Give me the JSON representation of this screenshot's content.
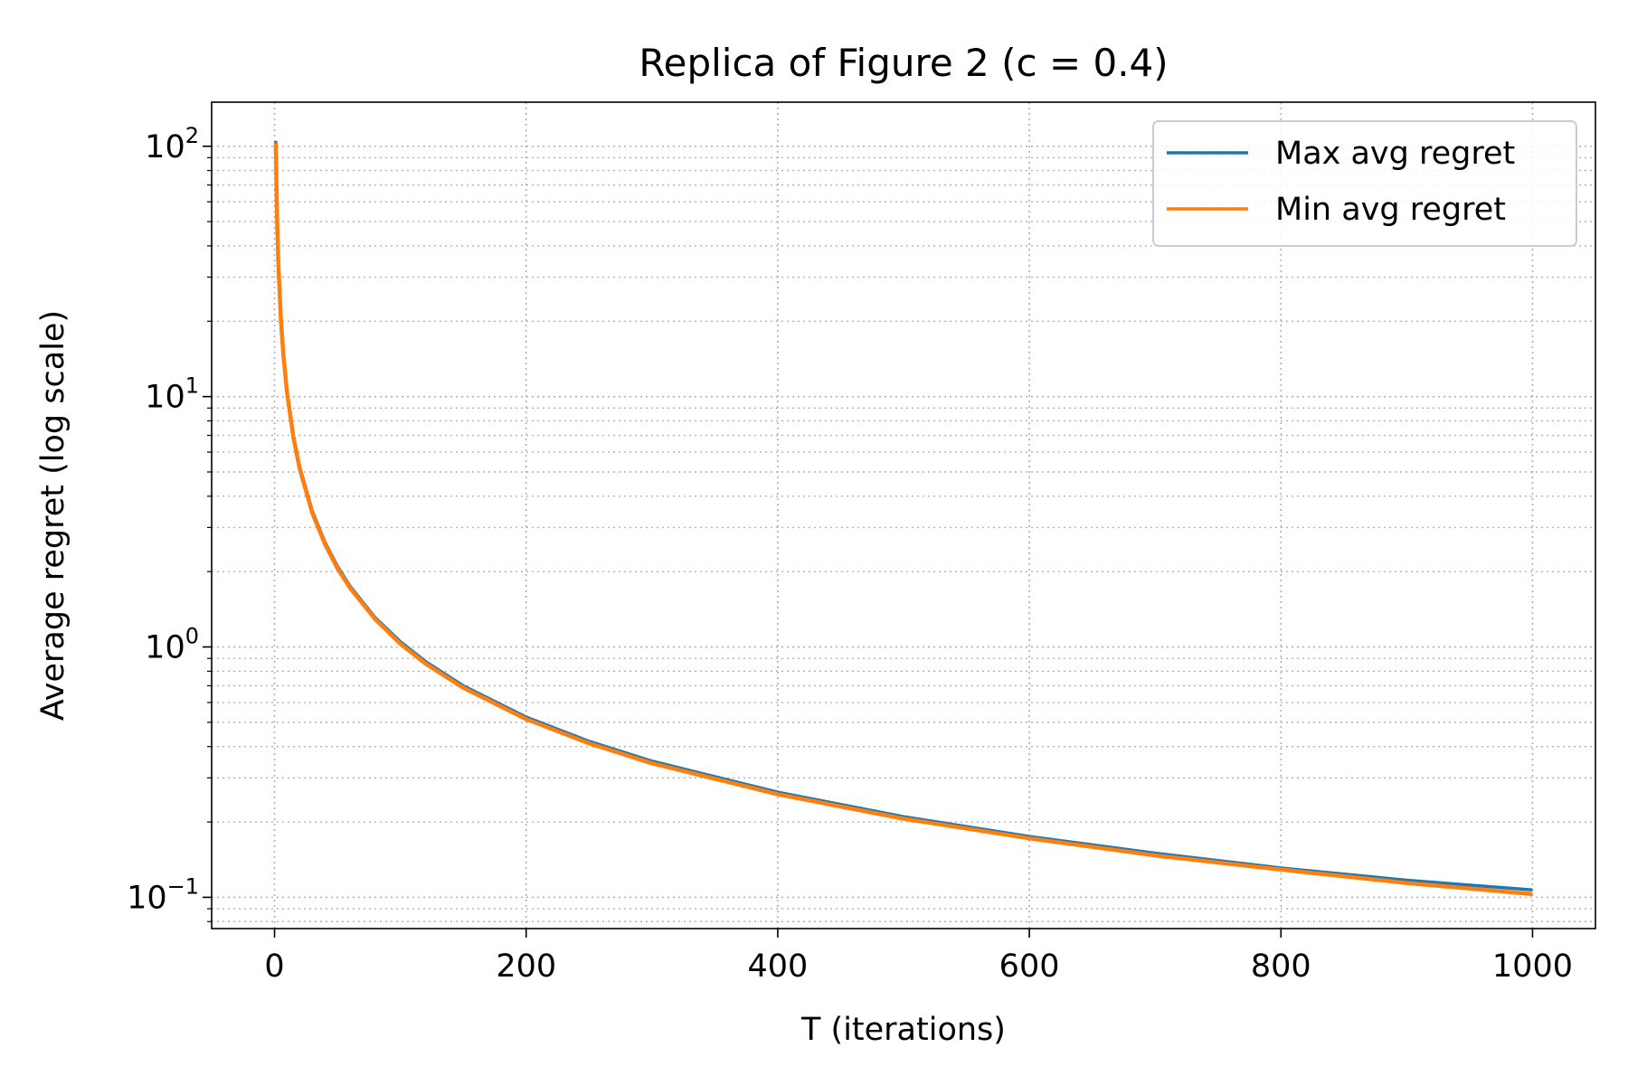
{
  "chart_data": {
    "type": "line",
    "title": "Replica of Figure 2 (c = 0.4)",
    "xlabel": "T (iterations)",
    "ylabel": "Average regret (log scale)",
    "xlim": [
      -50,
      1050
    ],
    "ylim": [
      0.075,
      150
    ],
    "yscale": "log",
    "grid": true,
    "legend_position": "top-right",
    "x_ticks": [
      0,
      200,
      400,
      600,
      800,
      1000
    ],
    "x_tick_labels": [
      "0",
      "200",
      "400",
      "600",
      "800",
      "1000"
    ],
    "y_ticks": [
      0.1,
      1,
      10,
      100
    ],
    "y_tick_labels": [
      {
        "base": "10",
        "exp": "−1"
      },
      {
        "base": "10",
        "exp": "0"
      },
      {
        "base": "10",
        "exp": "1"
      },
      {
        "base": "10",
        "exp": "2"
      }
    ],
    "series": [
      {
        "name": "Max avg regret",
        "color": "#1f77b4",
        "x": [
          1,
          2,
          3,
          5,
          7,
          10,
          15,
          20,
          30,
          40,
          50,
          60,
          80,
          100,
          120,
          150,
          200,
          250,
          300,
          400,
          500,
          600,
          700,
          800,
          900,
          1000
        ],
        "y": [
          105,
          52.5,
          35,
          21,
          15,
          10.5,
          7.0,
          5.25,
          3.5,
          2.63,
          2.1,
          1.75,
          1.31,
          1.05,
          0.875,
          0.7,
          0.525,
          0.42,
          0.35,
          0.263,
          0.21,
          0.175,
          0.15,
          0.131,
          0.117,
          0.107
        ]
      },
      {
        "name": "Min avg regret",
        "color": "#ff7f0e",
        "x": [
          1,
          2,
          3,
          5,
          7,
          10,
          15,
          20,
          30,
          40,
          50,
          60,
          80,
          100,
          120,
          150,
          200,
          250,
          300,
          400,
          500,
          600,
          700,
          800,
          900,
          1000
        ],
        "y": [
          103,
          51.5,
          34.3,
          20.6,
          14.7,
          10.3,
          6.87,
          5.15,
          3.43,
          2.58,
          2.06,
          1.72,
          1.29,
          1.03,
          0.858,
          0.687,
          0.515,
          0.412,
          0.343,
          0.258,
          0.206,
          0.172,
          0.147,
          0.129,
          0.114,
          0.103
        ]
      }
    ]
  }
}
